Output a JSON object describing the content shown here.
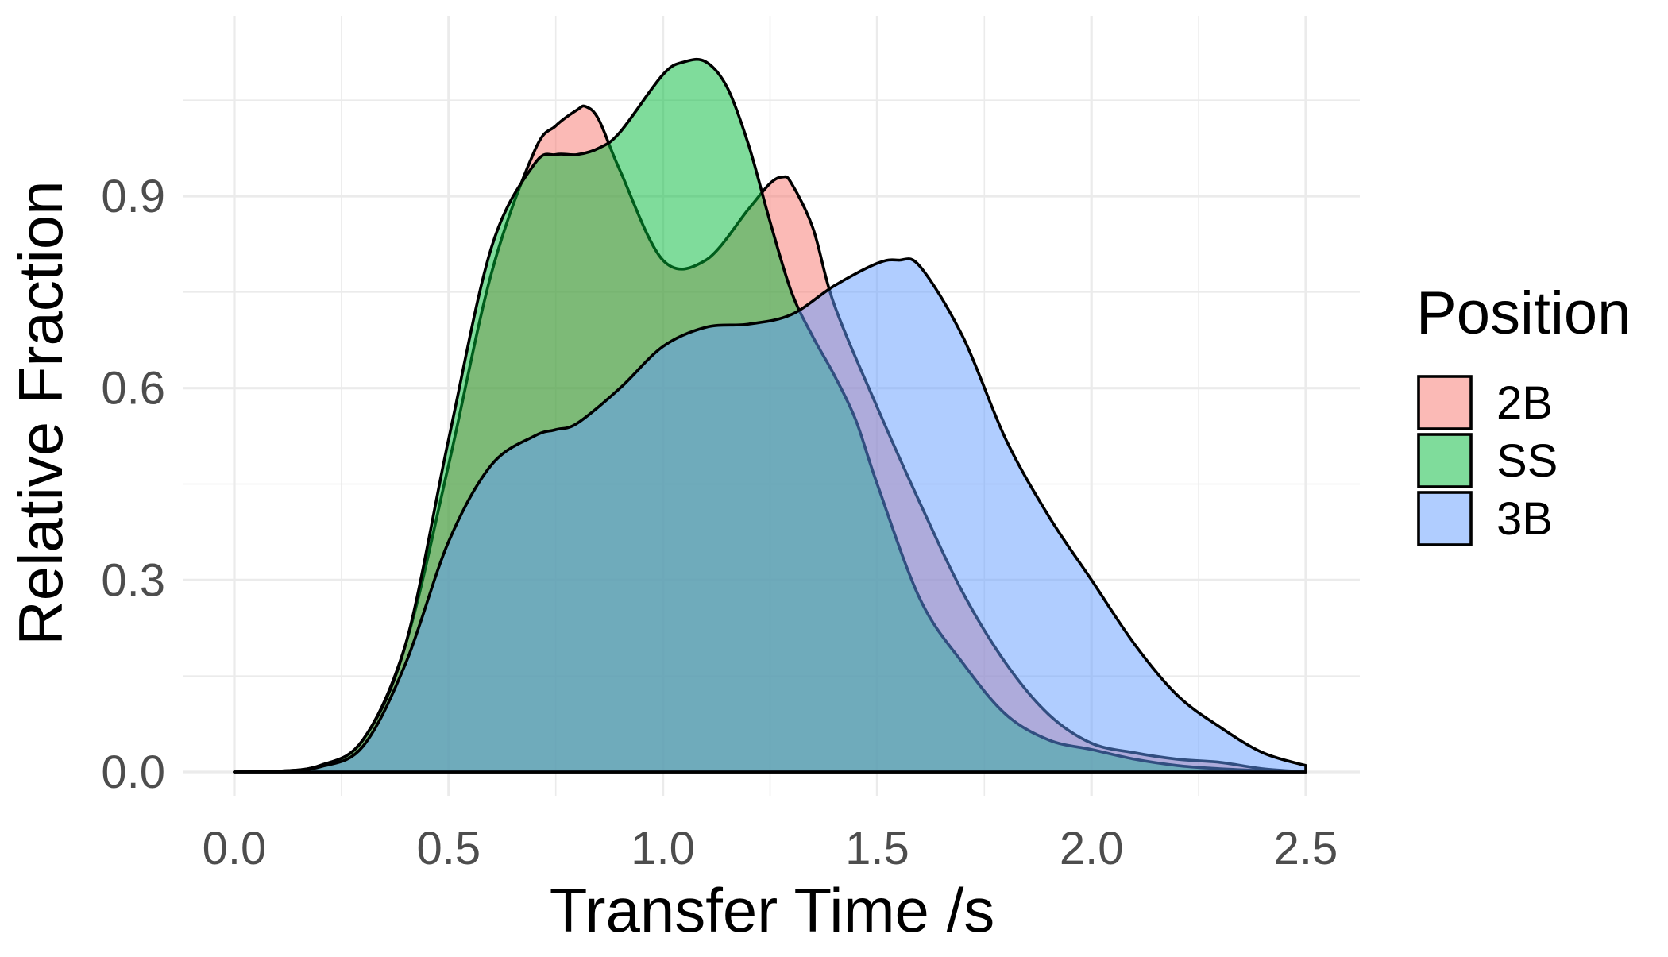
{
  "chart_data": {
    "type": "area",
    "xlabel": "Transfer Time /s",
    "ylabel": "Relative Fraction",
    "xlim": [
      0.0,
      2.5
    ],
    "ylim": [
      0.0,
      1.1
    ],
    "x_ticks": [
      "0.0",
      "0.5",
      "1.0",
      "1.5",
      "2.0",
      "2.5"
    ],
    "y_ticks": [
      "0.0",
      "0.3",
      "0.6",
      "0.9"
    ],
    "grid": true,
    "legend": {
      "title": "Position",
      "placement": "right",
      "entries": [
        "2B",
        "SS",
        "3B"
      ]
    },
    "series": [
      {
        "name": "2B",
        "color": "#F8766D",
        "fill_opacity": 0.5,
        "x": [
          0.0,
          0.1,
          0.2,
          0.3,
          0.4,
          0.5,
          0.6,
          0.7,
          0.75,
          0.8,
          0.82,
          0.85,
          0.9,
          1.0,
          1.1,
          1.2,
          1.25,
          1.28,
          1.3,
          1.35,
          1.4,
          1.5,
          1.6,
          1.7,
          1.8,
          1.9,
          2.0,
          2.1,
          2.2,
          2.3,
          2.4,
          2.5
        ],
        "y": [
          0.0,
          0.001,
          0.01,
          0.05,
          0.2,
          0.48,
          0.78,
          0.97,
          1.01,
          1.035,
          1.04,
          1.02,
          0.94,
          0.8,
          0.8,
          0.88,
          0.92,
          0.93,
          0.92,
          0.85,
          0.73,
          0.57,
          0.42,
          0.28,
          0.17,
          0.09,
          0.045,
          0.03,
          0.02,
          0.015,
          0.005,
          0.0
        ]
      },
      {
        "name": "SS",
        "color": "#00BA38",
        "fill_opacity": 0.5,
        "x": [
          0.0,
          0.1,
          0.2,
          0.3,
          0.4,
          0.5,
          0.6,
          0.7,
          0.75,
          0.8,
          0.85,
          0.9,
          1.0,
          1.05,
          1.1,
          1.15,
          1.2,
          1.25,
          1.3,
          1.35,
          1.4,
          1.45,
          1.5,
          1.6,
          1.7,
          1.8,
          1.9,
          2.0,
          2.1,
          2.2,
          2.3,
          2.4,
          2.5
        ],
        "y": [
          0.0,
          0.001,
          0.01,
          0.05,
          0.2,
          0.52,
          0.82,
          0.95,
          0.965,
          0.965,
          0.975,
          1.0,
          1.09,
          1.11,
          1.11,
          1.07,
          0.98,
          0.86,
          0.75,
          0.68,
          0.62,
          0.55,
          0.45,
          0.27,
          0.17,
          0.09,
          0.05,
          0.035,
          0.02,
          0.01,
          0.005,
          0.002,
          0.0
        ]
      },
      {
        "name": "3B",
        "color": "#619CFF",
        "fill_opacity": 0.5,
        "x": [
          0.0,
          0.1,
          0.2,
          0.3,
          0.4,
          0.5,
          0.6,
          0.7,
          0.75,
          0.8,
          0.9,
          1.0,
          1.1,
          1.2,
          1.3,
          1.4,
          1.5,
          1.55,
          1.6,
          1.7,
          1.8,
          1.9,
          2.0,
          2.1,
          2.2,
          2.3,
          2.4,
          2.5
        ],
        "y": [
          0.0,
          0.001,
          0.008,
          0.04,
          0.17,
          0.36,
          0.48,
          0.525,
          0.535,
          0.545,
          0.6,
          0.665,
          0.695,
          0.7,
          0.715,
          0.76,
          0.795,
          0.8,
          0.79,
          0.68,
          0.52,
          0.4,
          0.3,
          0.2,
          0.12,
          0.07,
          0.03,
          0.01
        ]
      }
    ]
  }
}
